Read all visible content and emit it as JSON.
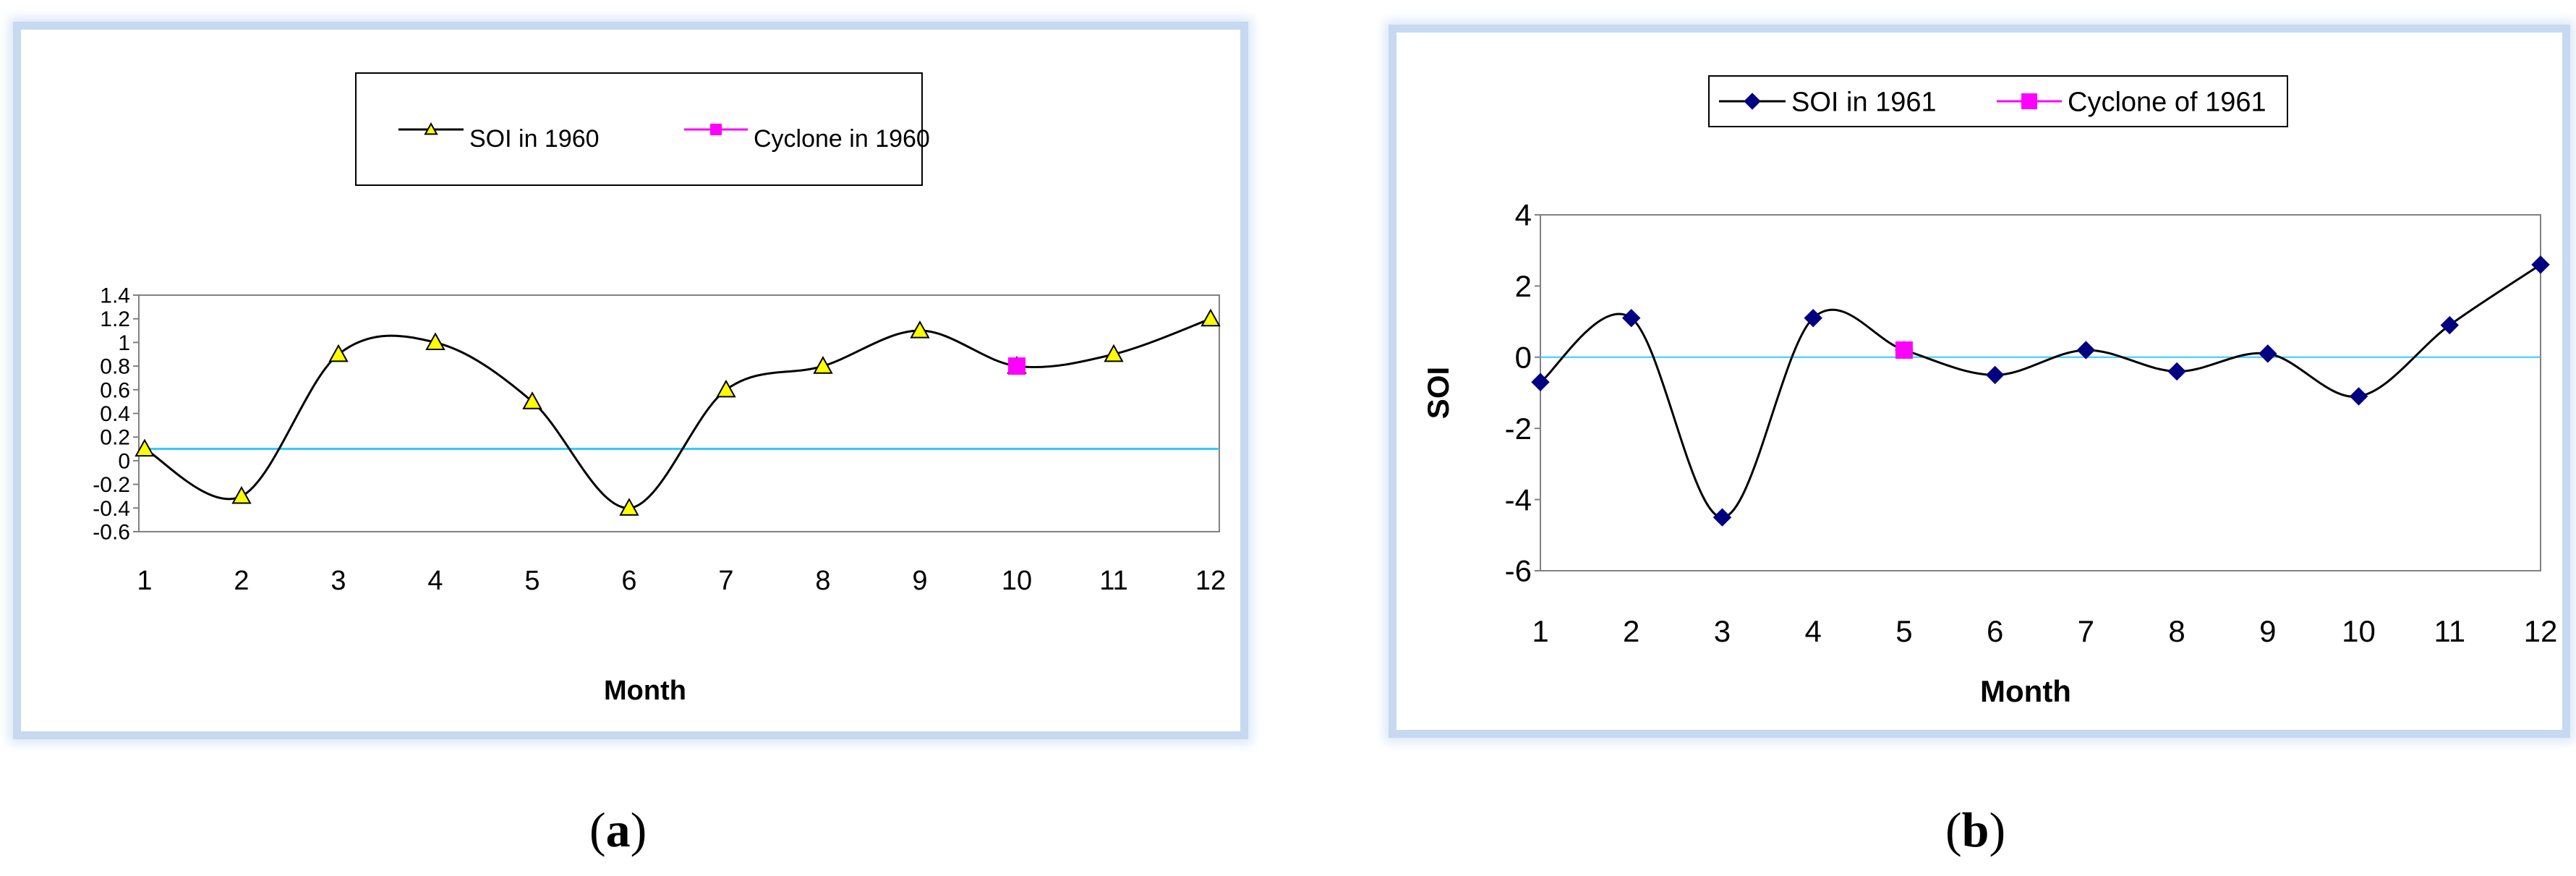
{
  "captions": [
    "a",
    "b"
  ],
  "chart_data": [
    {
      "type": "line",
      "title": "",
      "xlabel": "Month",
      "ylabel": "",
      "x": [
        1,
        2,
        3,
        4,
        5,
        6,
        7,
        8,
        9,
        10,
        11,
        12
      ],
      "x_ticks": [
        "1",
        "2",
        "3",
        "4",
        "5",
        "6",
        "7",
        "8",
        "9",
        "10",
        "11",
        "12"
      ],
      "y_ticks": [
        "1.4",
        "1.2",
        "1",
        "0.8",
        "0.6",
        "0.4",
        "0.2",
        "0",
        "-0.2",
        "-0.4",
        "-0.6"
      ],
      "ylim": [
        -0.6,
        1.4
      ],
      "zero_line_value": 0.1,
      "grid": false,
      "legend_position": "top",
      "series": [
        {
          "name": "SOI in 1960",
          "values": [
            0.1,
            -0.3,
            0.9,
            1.0,
            0.5,
            -0.4,
            0.6,
            0.8,
            1.1,
            0.8,
            0.9,
            1.2
          ],
          "color": "#000000",
          "marker": "triangle",
          "marker_color": "#ffff00"
        },
        {
          "name": "Cyclone in 1960",
          "x": [
            10
          ],
          "values": [
            0.8
          ],
          "color": "#ff00ff",
          "marker": "square"
        }
      ]
    },
    {
      "type": "line",
      "title": "",
      "xlabel": "Month",
      "ylabel": "SOI",
      "x": [
        1,
        2,
        3,
        4,
        5,
        6,
        7,
        8,
        9,
        10,
        11,
        12
      ],
      "x_ticks": [
        "1",
        "2",
        "3",
        "4",
        "5",
        "6",
        "7",
        "8",
        "9",
        "10",
        "11",
        "12"
      ],
      "y_ticks": [
        "4",
        "2",
        "0",
        "-2",
        "-4",
        "-6"
      ],
      "ylim": [
        -6,
        4
      ],
      "zero_line_value": 0,
      "grid": false,
      "legend_position": "top",
      "series": [
        {
          "name": "SOI in 1961",
          "values": [
            -0.7,
            1.1,
            -4.5,
            1.1,
            0.2,
            -0.5,
            0.2,
            -0.4,
            0.1,
            -1.1,
            0.9,
            2.6
          ],
          "color": "#000000",
          "marker": "diamond",
          "marker_color": "#000080"
        },
        {
          "name": "Cyclone of 1961",
          "x": [
            5
          ],
          "values": [
            0.2
          ],
          "color": "#ff00ff",
          "marker": "square"
        }
      ]
    }
  ]
}
